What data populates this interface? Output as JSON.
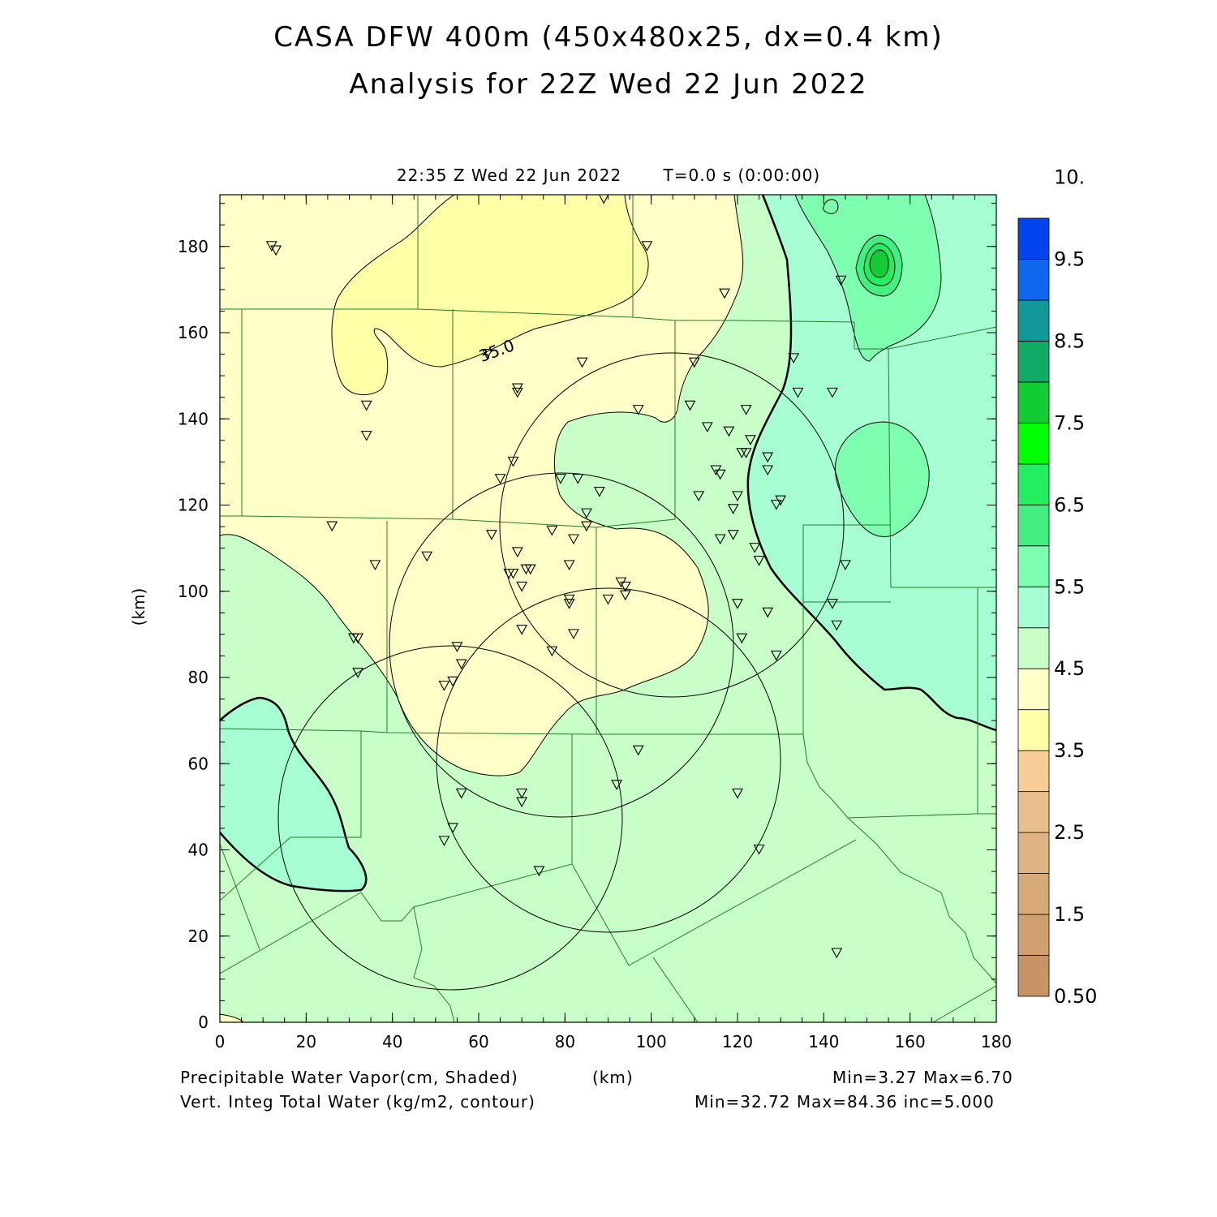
{
  "title": "CASA DFW 400m (450x480x25, dx=0.4 km)",
  "subtitle": "Analysis for 22Z Wed 22 Jun 2022",
  "valid_time": "22:35 Z Wed 22 Jun 2022",
  "forecast_time": "T=0.0 s (0:00:00)",
  "axes": {
    "x_ticks": [
      "0",
      "20",
      "40",
      "60",
      "80",
      "100",
      "120",
      "140",
      "160",
      "180"
    ],
    "y_ticks": [
      "0",
      "20",
      "40",
      "60",
      "80",
      "100",
      "120",
      "140",
      "160",
      "180"
    ],
    "y_label": "(km)",
    "x_label": "(km)",
    "x_range": [
      0,
      180
    ],
    "y_range": [
      0,
      192
    ]
  },
  "colorbar": {
    "labels": [
      "0.50",
      "1.5",
      "2.5",
      "3.5",
      "4.5",
      "5.5",
      "6.5",
      "7.5",
      "8.5",
      "9.5",
      "10."
    ],
    "colors": [
      "#c89466",
      "#d0a070",
      "#d8aa78",
      "#e0b482",
      "#e8be8c",
      "#f8cc96",
      "#ffffa8",
      "#ffffc8",
      "#c8ffc8",
      "#a6ffd2",
      "#7effb0",
      "#44ee80",
      "#22ee60",
      "#00ff00",
      "#11cc33",
      "#11aa66",
      "#119999",
      "#1166ee",
      "#0044ee"
    ]
  },
  "contour_label": "35.0",
  "legend": {
    "line1_left": "Precipitable Water Vapor(cm, Shaded)",
    "line1_units": "(km)",
    "line1_right": "Min=3.27 Max=6.70",
    "line2_left": "Vert. Integ Total Water (kg/m2, contour)",
    "line2_right": "Min=32.72 Max=84.36 inc=5.000"
  },
  "stations": [
    [
      12,
      180
    ],
    [
      13,
      179
    ],
    [
      34,
      143
    ],
    [
      34,
      136
    ],
    [
      26,
      115
    ],
    [
      36,
      106
    ],
    [
      31,
      89
    ],
    [
      32,
      89
    ],
    [
      32,
      81
    ],
    [
      48,
      108
    ],
    [
      55,
      87
    ],
    [
      56,
      83
    ],
    [
      54,
      79
    ],
    [
      52,
      78
    ],
    [
      56,
      53
    ],
    [
      54,
      45
    ],
    [
      52,
      42
    ],
    [
      74,
      35
    ],
    [
      70,
      53
    ],
    [
      70,
      51
    ],
    [
      69,
      147
    ],
    [
      69,
      146
    ],
    [
      62,
      155
    ],
    [
      65,
      126
    ],
    [
      68,
      130
    ],
    [
      63,
      113
    ],
    [
      67,
      104
    ],
    [
      68,
      104
    ],
    [
      69,
      109
    ],
    [
      70,
      101
    ],
    [
      71,
      105
    ],
    [
      72,
      105
    ],
    [
      70,
      91
    ],
    [
      77,
      86
    ],
    [
      77,
      114
    ],
    [
      79,
      126
    ],
    [
      83,
      126
    ],
    [
      84,
      153
    ],
    [
      88,
      123
    ],
    [
      85,
      118
    ],
    [
      85,
      115
    ],
    [
      82,
      112
    ],
    [
      81,
      106
    ],
    [
      81,
      98
    ],
    [
      81,
      97
    ],
    [
      82,
      90
    ],
    [
      90,
      98
    ],
    [
      93,
      102
    ],
    [
      94,
      101
    ],
    [
      94,
      99
    ],
    [
      89,
      191
    ],
    [
      99,
      180
    ],
    [
      97,
      142
    ],
    [
      92,
      55
    ],
    [
      97,
      63
    ],
    [
      110,
      153
    ],
    [
      109,
      143
    ],
    [
      111,
      122
    ],
    [
      113,
      138
    ],
    [
      115,
      128
    ],
    [
      116,
      127
    ],
    [
      116,
      112
    ],
    [
      118,
      137
    ],
    [
      119,
      119
    ],
    [
      119,
      113
    ],
    [
      120,
      122
    ],
    [
      121,
      132
    ],
    [
      122,
      132
    ],
    [
      123,
      135
    ],
    [
      122,
      142
    ],
    [
      120,
      97
    ],
    [
      121,
      89
    ],
    [
      120,
      53
    ],
    [
      117,
      169
    ],
    [
      125,
      40
    ],
    [
      124,
      110
    ],
    [
      125,
      107
    ],
    [
      127,
      131
    ],
    [
      127,
      128
    ],
    [
      129,
      120
    ],
    [
      130,
      121
    ],
    [
      127,
      95
    ],
    [
      129,
      85
    ],
    [
      133,
      154
    ],
    [
      134,
      146
    ],
    [
      142,
      146
    ],
    [
      145,
      106
    ],
    [
      142,
      97
    ],
    [
      143,
      92
    ],
    [
      143,
      16
    ],
    [
      144,
      172
    ]
  ]
}
